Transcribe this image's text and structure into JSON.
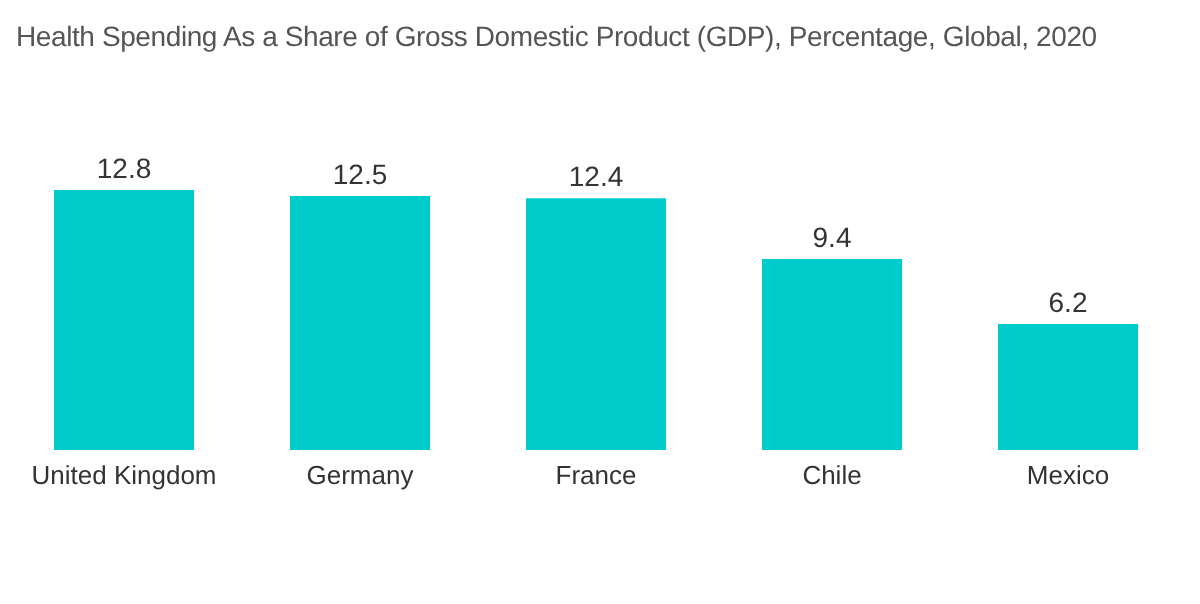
{
  "chart_data": {
    "type": "bar",
    "title": "Health Spending As a Share of Gross Domestic Product (GDP), Percentage, Global, 2020",
    "categories": [
      "United Kingdom",
      "Germany",
      "France",
      "Chile",
      "Mexico"
    ],
    "values": [
      12.8,
      12.5,
      12.4,
      9.4,
      6.2
    ],
    "color": "#00cccc",
    "data_labels": true,
    "grid": false,
    "legend": false
  }
}
